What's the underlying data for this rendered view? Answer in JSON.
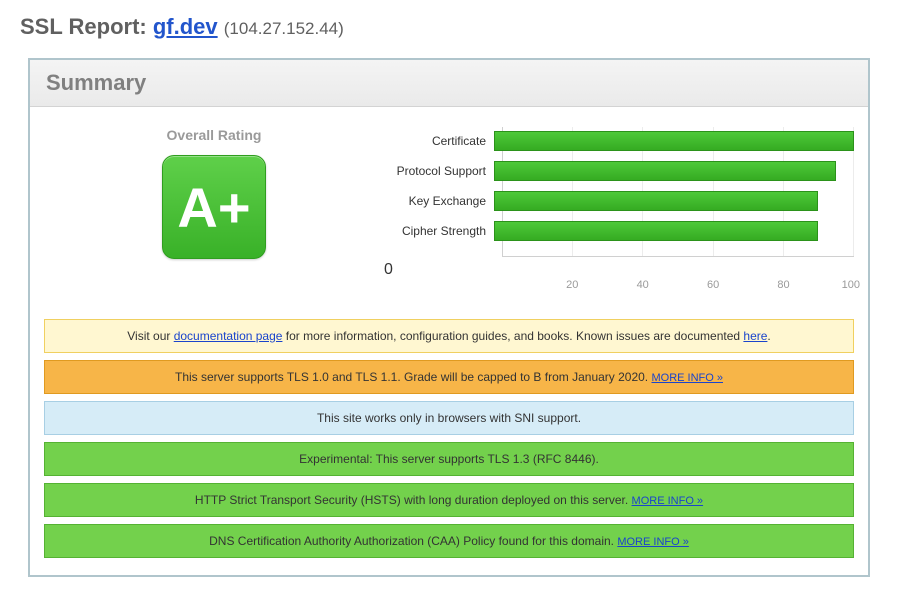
{
  "title": {
    "prefix": "SSL Report: ",
    "domain": "gf.dev",
    "ip": "(104.27.152.44)"
  },
  "summary": {
    "heading": "Summary",
    "rating_label": "Overall Rating",
    "grade": "A+",
    "grade_bg_top": "#5fd04a",
    "grade_bg_bottom": "#39b128",
    "grade_border": "#2f9e1f",
    "grade_text": "#ffffff"
  },
  "chart": {
    "type": "bar",
    "xlim": [
      0,
      100
    ],
    "tick_step": 20,
    "bar_colors": [
      "#4ec939",
      "#4ec939",
      "#4ec939",
      "#4ec939"
    ],
    "bar_border": "#2b921a",
    "grid_color": "#ececec",
    "axis_color": "#d0d0d0",
    "label_fontsize": 12,
    "tick_fontsize": 11,
    "tick_color": "#9a9a9a",
    "ticks": [
      "0",
      "20",
      "40",
      "60",
      "80",
      "100"
    ],
    "rows": [
      {
        "label": "Certificate",
        "value": 100
      },
      {
        "label": "Protocol Support",
        "value": 95
      },
      {
        "label": "Key Exchange",
        "value": 90
      },
      {
        "label": "Cipher Strength",
        "value": 90
      }
    ]
  },
  "notices": {
    "doc": {
      "pre": "Visit our ",
      "link": "documentation page",
      "mid": " for more information, configuration guides, and books. Known issues are documented ",
      "link2": "here",
      "post": "."
    },
    "tls_old": {
      "text": "This server supports TLS 1.0 and TLS 1.1. Grade will be capped to B from January 2020. ",
      "more": "MORE INFO »"
    },
    "sni": {
      "text": "This site works only in browsers with SNI support."
    },
    "tls13": {
      "text": "Experimental: This server supports TLS 1.3 (RFC 8446)."
    },
    "hsts": {
      "text": "HTTP Strict Transport Security (HSTS) with long duration deployed on this server.  ",
      "more": "MORE INFO »"
    },
    "caa": {
      "text": "DNS Certification Authority Authorization (CAA) Policy found for this domain.  ",
      "more": "MORE INFO »"
    }
  }
}
